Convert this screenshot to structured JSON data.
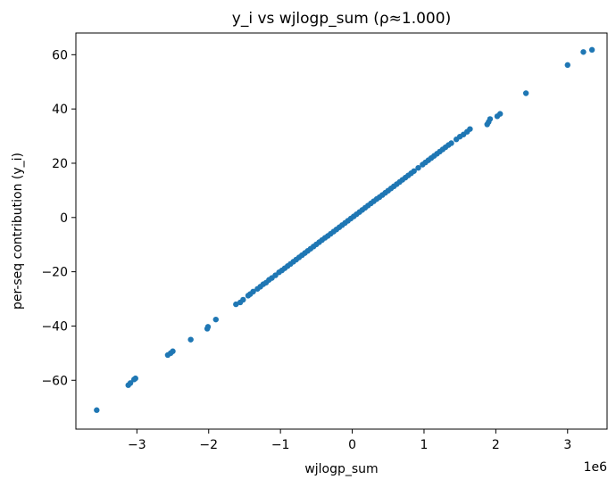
{
  "chart_data": {
    "type": "scatter",
    "title": "y_i vs wjlogp_sum  (ρ≈1.000)",
    "xlabel": "wjlogp_sum",
    "ylabel": "per-seq contribution (y_i)",
    "x_offset_label": "1e6",
    "x_unit_multiplier": 1000000,
    "xlim": [
      -3.85,
      3.55
    ],
    "ylim": [
      -78,
      68
    ],
    "xticks": [
      -3,
      -2,
      -1,
      0,
      1,
      2,
      3
    ],
    "yticks": [
      -60,
      -40,
      -20,
      0,
      20,
      40,
      60
    ],
    "grid": false,
    "legend": "none",
    "marker_color": "#1f77b4",
    "points": [
      [
        -3.56,
        -71.0
      ],
      [
        -3.12,
        -61.8
      ],
      [
        -3.09,
        -61.0
      ],
      [
        -3.04,
        -59.7
      ],
      [
        -3.02,
        -59.3
      ],
      [
        -2.57,
        -50.7
      ],
      [
        -2.53,
        -50.0
      ],
      [
        -2.5,
        -49.3
      ],
      [
        -2.25,
        -45.0
      ],
      [
        -2.02,
        -41.0
      ],
      [
        -2.01,
        -40.3
      ],
      [
        -1.9,
        -37.6
      ],
      [
        -1.62,
        -32.0
      ],
      [
        -1.56,
        -31.3
      ],
      [
        -1.52,
        -30.3
      ],
      [
        -1.45,
        -28.8
      ],
      [
        -1.42,
        -28.2
      ],
      [
        -1.38,
        -27.3
      ],
      [
        -1.32,
        -26.3
      ],
      [
        -1.28,
        -25.5
      ],
      [
        -1.24,
        -24.6
      ],
      [
        -1.2,
        -24.0
      ],
      [
        -1.16,
        -23.0
      ],
      [
        -1.12,
        -22.3
      ],
      [
        -1.07,
        -21.3
      ],
      [
        -1.02,
        -20.2
      ],
      [
        -0.98,
        -19.5
      ],
      [
        -0.94,
        -18.7
      ],
      [
        -0.9,
        -17.9
      ],
      [
        -0.86,
        -17.1
      ],
      [
        -0.82,
        -16.3
      ],
      [
        -0.78,
        -15.5
      ],
      [
        -0.74,
        -14.7
      ],
      [
        -0.7,
        -13.9
      ],
      [
        -0.66,
        -13.1
      ],
      [
        -0.62,
        -12.3
      ],
      [
        -0.58,
        -11.5
      ],
      [
        -0.54,
        -10.7
      ],
      [
        -0.5,
        -9.9
      ],
      [
        -0.46,
        -9.1
      ],
      [
        -0.42,
        -8.3
      ],
      [
        -0.38,
        -7.5
      ],
      [
        -0.34,
        -6.8
      ],
      [
        -0.3,
        -6.0
      ],
      [
        -0.26,
        -5.2
      ],
      [
        -0.22,
        -4.4
      ],
      [
        -0.18,
        -3.6
      ],
      [
        -0.14,
        -2.8
      ],
      [
        -0.1,
        -2.0
      ],
      [
        -0.06,
        -1.2
      ],
      [
        -0.02,
        -0.4
      ],
      [
        0.02,
        0.4
      ],
      [
        0.06,
        1.2
      ],
      [
        0.1,
        2.0
      ],
      [
        0.14,
        2.8
      ],
      [
        0.18,
        3.6
      ],
      [
        0.22,
        4.4
      ],
      [
        0.26,
        5.2
      ],
      [
        0.3,
        6.0
      ],
      [
        0.34,
        6.8
      ],
      [
        0.38,
        7.5
      ],
      [
        0.42,
        8.3
      ],
      [
        0.46,
        9.1
      ],
      [
        0.5,
        9.9
      ],
      [
        0.54,
        10.7
      ],
      [
        0.58,
        11.5
      ],
      [
        0.62,
        12.3
      ],
      [
        0.66,
        13.1
      ],
      [
        0.7,
        13.9
      ],
      [
        0.74,
        14.7
      ],
      [
        0.78,
        15.5
      ],
      [
        0.82,
        16.3
      ],
      [
        0.86,
        17.1
      ],
      [
        0.92,
        18.3
      ],
      [
        0.98,
        19.5
      ],
      [
        1.02,
        20.3
      ],
      [
        1.06,
        21.1
      ],
      [
        1.1,
        21.9
      ],
      [
        1.14,
        22.7
      ],
      [
        1.18,
        23.5
      ],
      [
        1.22,
        24.3
      ],
      [
        1.26,
        25.1
      ],
      [
        1.3,
        25.9
      ],
      [
        1.34,
        26.7
      ],
      [
        1.38,
        27.4
      ],
      [
        1.45,
        28.8
      ],
      [
        1.5,
        29.8
      ],
      [
        1.55,
        30.6
      ],
      [
        1.6,
        31.6
      ],
      [
        1.64,
        32.6
      ],
      [
        1.88,
        34.3
      ],
      [
        1.9,
        35.2
      ],
      [
        1.92,
        36.3
      ],
      [
        2.02,
        37.3
      ],
      [
        2.06,
        38.2
      ],
      [
        2.42,
        45.8
      ],
      [
        3.0,
        56.2
      ],
      [
        3.22,
        61.0
      ],
      [
        3.34,
        61.8
      ]
    ]
  }
}
